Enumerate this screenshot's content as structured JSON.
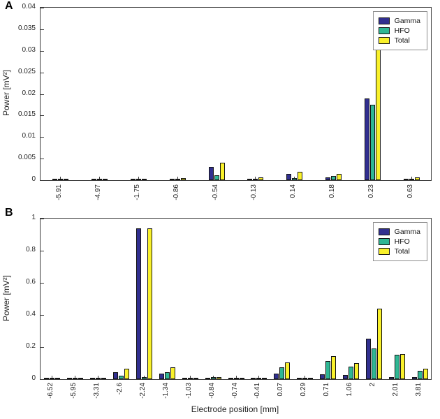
{
  "panels": [
    {
      "letter": "A"
    },
    {
      "letter": "B"
    }
  ],
  "chart_data": [
    {
      "type": "bar",
      "title": "",
      "xlabel": "",
      "ylabel": "Power [mV²]",
      "ylim": [
        0,
        0.04
      ],
      "yticks": [
        0,
        0.005,
        0.01,
        0.015,
        0.02,
        0.025,
        0.03,
        0.035,
        0.04
      ],
      "grid": false,
      "legend_position": "top-right",
      "categories": [
        "-5.91",
        "-4.97",
        "-1.75",
        "-0.86",
        "-0.54",
        "-0.13",
        "0.14",
        "0.18",
        "0.23",
        "0.63"
      ],
      "series": [
        {
          "name": "Gamma",
          "color": "#312f8f",
          "values": [
            0.0002,
            0.0001,
            0.0002,
            0.0002,
            0.003,
            0.0004,
            0.0014,
            0.0006,
            0.019,
            0.0003
          ]
        },
        {
          "name": "HFO",
          "color": "#2fb794",
          "values": [
            0.0002,
            0.0001,
            0.0002,
            0.0003,
            0.0012,
            0.0003,
            0.0005,
            0.0009,
            0.0175,
            0.0004
          ]
        },
        {
          "name": "Total",
          "color": "#f9f12b",
          "values": [
            0.0003,
            0.0002,
            0.0003,
            0.0005,
            0.004,
            0.0007,
            0.0019,
            0.0014,
            0.0365,
            0.0006
          ]
        }
      ]
    },
    {
      "type": "bar",
      "title": "",
      "xlabel": "Electrode position [mm]",
      "ylabel": "Power [mV²]",
      "ylim": [
        0,
        1
      ],
      "yticks": [
        0,
        0.2,
        0.4,
        0.6,
        0.8,
        1
      ],
      "grid": false,
      "legend_position": "top-right",
      "categories": [
        "-6.52",
        "-5.95",
        "-3.31",
        "-2.6",
        "-2.24",
        "-1.34",
        "-1.03",
        "-0.84",
        "-0.74",
        "-0.41",
        "0.07",
        "0.29",
        "0.71",
        "1.06",
        "2",
        "2.01",
        "3.81"
      ],
      "series": [
        {
          "name": "Gamma",
          "color": "#312f8f",
          "values": [
            0.003,
            0.002,
            0.004,
            0.045,
            0.94,
            0.035,
            0.004,
            0.008,
            0.002,
            0.002,
            0.035,
            0.005,
            0.03,
            0.025,
            0.25,
            0.015,
            0.012
          ]
        },
        {
          "name": "HFO",
          "color": "#2fb794",
          "values": [
            0.003,
            0.003,
            0.004,
            0.02,
            0.015,
            0.045,
            0.005,
            0.012,
            0.003,
            0.002,
            0.075,
            0.004,
            0.115,
            0.08,
            0.19,
            0.15,
            0.05
          ]
        },
        {
          "name": "Total",
          "color": "#f9f12b",
          "values": [
            0.005,
            0.004,
            0.007,
            0.065,
            0.94,
            0.075,
            0.008,
            0.015,
            0.004,
            0.003,
            0.105,
            0.008,
            0.145,
            0.1,
            0.44,
            0.155,
            0.065
          ]
        }
      ]
    }
  ]
}
